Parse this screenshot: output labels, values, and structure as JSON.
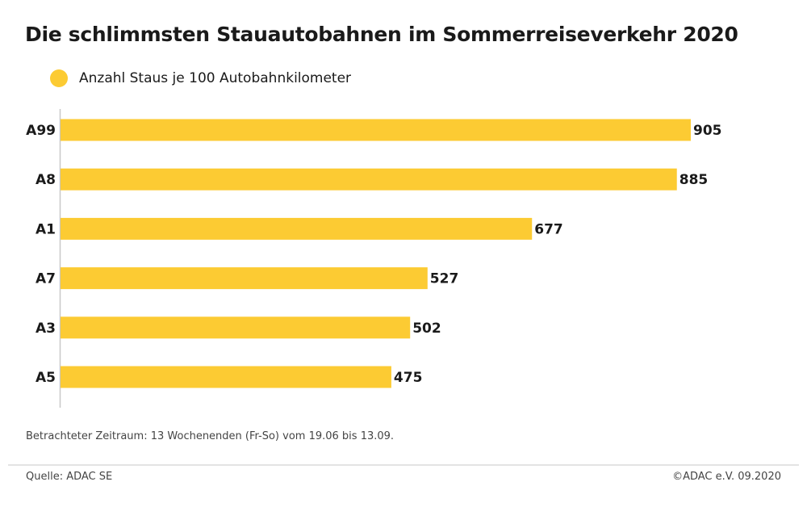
{
  "chart_data": {
    "type": "bar",
    "orientation": "horizontal",
    "title": "Die schlimmsten Stauautobahnen im Sommerreiseverkehr 2020",
    "categories": [
      "A99",
      "A8",
      "A1",
      "A7",
      "A3",
      "A5"
    ],
    "series": [
      {
        "name": "Anzahl Staus je 100 Autobahnkilometer",
        "values": [
          905,
          885,
          677,
          527,
          502,
          475
        ],
        "color": "#FCCB33"
      }
    ],
    "xlim": [
      0,
      1000
    ],
    "grid": false,
    "legend_placement": "top-left",
    "data_labels": true
  },
  "note": "Betrachteter Zeitraum: 13 Wochenenden (Fr-So) vom 19.06 bis 13.09.",
  "source": "Quelle: ADAC SE",
  "copyright": "©ADAC e.V.  09.2020"
}
